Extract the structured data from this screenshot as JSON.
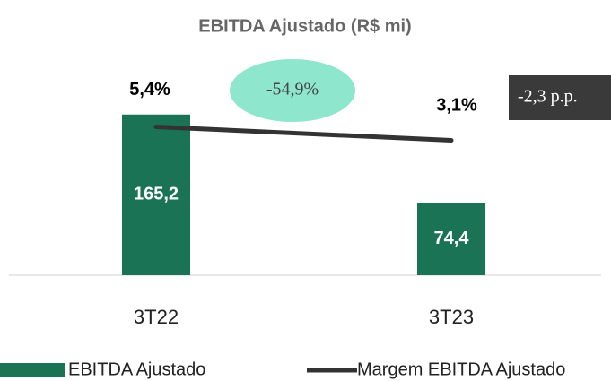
{
  "chart_data": {
    "type": "bar_line",
    "title": "EBITDA Ajustado (R$ mi)",
    "categories": [
      "3T22",
      "3T23"
    ],
    "series": [
      {
        "name": "EBITDA Ajustado",
        "color": "#1a7355",
        "type": "bar",
        "values": [
          165.2,
          74.4
        ],
        "value_labels": [
          "165,2",
          "74,4"
        ]
      },
      {
        "name": "Margem EBITDA Ajustado",
        "color": "#333333",
        "type": "line",
        "axis": "y2",
        "values": [
          5.4,
          3.1
        ],
        "value_labels": [
          "5,4%",
          "3,1%"
        ]
      }
    ],
    "annotations": [
      "-54,9%",
      "-2,3 p.p."
    ],
    "ylim": [
      0,
      200
    ],
    "y2lim": [
      -20,
      13.3
    ],
    "legend": "bottom"
  }
}
